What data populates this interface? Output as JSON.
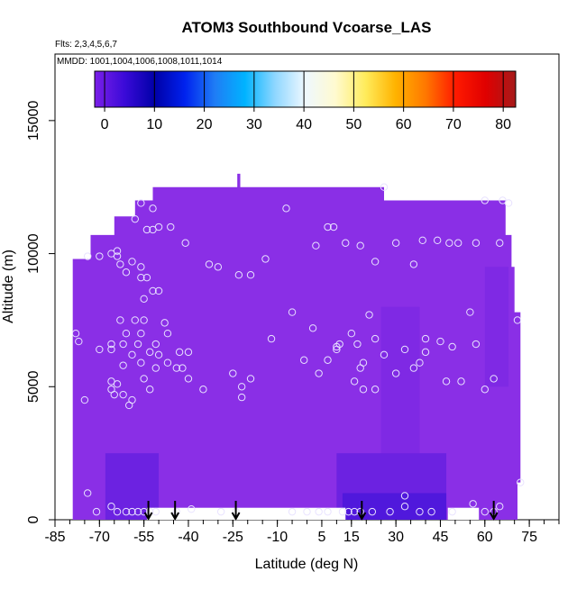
{
  "chart_data": {
    "type": "heatmap",
    "title": "ATOM3 Southbound Vcoarse_LAS",
    "info_line_1": "Flts: 2,3,4,5,6,7",
    "info_line_2": "MMDD: 1001,1004,1006,1008,1011,1014",
    "xlabel": "Latitude (deg N)",
    "ylabel": "Altitude (m)",
    "xlim": [
      -85,
      85
    ],
    "ylim": [
      0,
      17500
    ],
    "x_ticks": [
      -85,
      -70,
      -55,
      -40,
      -25,
      -10,
      5,
      15,
      30,
      45,
      60,
      75
    ],
    "y_ticks": [
      0,
      5000,
      10000,
      15000
    ],
    "colorbar": {
      "ticks": [
        0,
        10,
        20,
        30,
        40,
        50,
        60,
        70,
        80
      ],
      "range": [
        -2,
        82.5
      ],
      "colors": [
        "#7b1fe8",
        "#3a0ad8",
        "#0000a8",
        "#0022ee",
        "#1f7df5",
        "#00b3ff",
        "#8fd7ff",
        "#eef8ff",
        "#fffad0",
        "#ffec5c",
        "#ffb300",
        "#ff7800",
        "#ff1a00",
        "#e00000",
        "#a61a1a"
      ]
    },
    "colors": {
      "background": "#8a2fe6",
      "darker": "#6a1fe0",
      "darkest": "#3b10d8",
      "point_stroke": "#e8e2ff",
      "arrow": "#000000"
    },
    "coverage_outline": [
      [
        -79,
        0
      ],
      [
        -79,
        9800
      ],
      [
        -73,
        9800
      ],
      [
        -73,
        10700
      ],
      [
        -65,
        10700
      ],
      [
        -65,
        11400
      ],
      [
        -58,
        11400
      ],
      [
        -58,
        12000
      ],
      [
        -52,
        12000
      ],
      [
        -52,
        12500
      ],
      [
        -23.5,
        12500
      ],
      [
        -23.5,
        13000
      ],
      [
        -22.5,
        13000
      ],
      [
        -22.5,
        12500
      ],
      [
        26,
        12500
      ],
      [
        26,
        12000
      ],
      [
        67,
        12000
      ],
      [
        67,
        10700
      ],
      [
        69,
        10700
      ],
      [
        69,
        9500
      ],
      [
        70,
        9500
      ],
      [
        70,
        7800
      ],
      [
        72,
        7800
      ],
      [
        72,
        1400
      ],
      [
        71,
        1400
      ],
      [
        71,
        0
      ]
    ],
    "data_gaps": [
      {
        "x0": -54,
        "x1": 13,
        "y0": 0,
        "y1": 450
      },
      {
        "x0": 47.5,
        "x1": 58,
        "y0": 0,
        "y1": 450
      }
    ],
    "dark_regions": [
      {
        "x0": -68,
        "x1": -50,
        "y0": 0,
        "y1": 2500,
        "level": 1
      },
      {
        "x0": 10,
        "x1": 47,
        "y0": 0,
        "y1": 2500,
        "level": 1
      },
      {
        "x0": 12,
        "x1": 47,
        "y0": 0,
        "y1": 1000,
        "level": 2
      },
      {
        "x0": 25,
        "x1": 38,
        "y0": 2500,
        "y1": 8000,
        "level": 0
      },
      {
        "x0": 60,
        "x1": 68,
        "y0": 5000,
        "y1": 9500,
        "level": 0
      }
    ],
    "points": [
      [
        -74,
        9900
      ],
      [
        -78,
        7000
      ],
      [
        -77,
        6700
      ],
      [
        -75,
        4500
      ],
      [
        -70,
        9900
      ],
      [
        -66,
        10000
      ],
      [
        -64,
        10100
      ],
      [
        -64,
        9900
      ],
      [
        -63,
        9600
      ],
      [
        -61,
        9300
      ],
      [
        -59,
        9700
      ],
      [
        -56,
        9500
      ],
      [
        -56,
        9100
      ],
      [
        -54,
        9100
      ],
      [
        -58,
        11300
      ],
      [
        -54,
        10900
      ],
      [
        -52,
        10900
      ],
      [
        -50,
        11000
      ],
      [
        -46,
        11000
      ],
      [
        -56,
        11900
      ],
      [
        -52,
        11700
      ],
      [
        -41,
        10400
      ],
      [
        -33,
        9600
      ],
      [
        -30,
        9500
      ],
      [
        -23,
        9200
      ],
      [
        -19,
        9200
      ],
      [
        -14,
        9800
      ],
      [
        -7,
        11700
      ],
      [
        3,
        10300
      ],
      [
        7,
        11000
      ],
      [
        9,
        11000
      ],
      [
        13,
        10400
      ],
      [
        18,
        10300
      ],
      [
        26,
        12500
      ],
      [
        23,
        9700
      ],
      [
        30,
        10400
      ],
      [
        36,
        9600
      ],
      [
        39,
        10500
      ],
      [
        44,
        10500
      ],
      [
        51,
        10400
      ],
      [
        57,
        10400
      ],
      [
        65,
        10400
      ],
      [
        66,
        12000
      ],
      [
        68,
        11900
      ],
      [
        60,
        12000
      ],
      [
        48,
        10400
      ],
      [
        -63,
        7500
      ],
      [
        -58,
        7500
      ],
      [
        -55,
        7500
      ],
      [
        -61,
        7000
      ],
      [
        -56,
        7000
      ],
      [
        -48,
        7400
      ],
      [
        -55,
        8300
      ],
      [
        -52,
        8600
      ],
      [
        -50,
        8600
      ],
      [
        -66,
        6600
      ],
      [
        -62,
        6600
      ],
      [
        -57,
        6600
      ],
      [
        -51,
        6600
      ],
      [
        -47,
        7000
      ],
      [
        -53,
        6300
      ],
      [
        -50,
        6200
      ],
      [
        -47,
        5900
      ],
      [
        -59,
        6200
      ],
      [
        -56,
        5900
      ],
      [
        -51,
        5700
      ],
      [
        -44,
        5700
      ],
      [
        -42,
        5700
      ],
      [
        -40,
        5300
      ],
      [
        -62,
        5800
      ],
      [
        -66,
        6400
      ],
      [
        -70,
        6400
      ],
      [
        -66,
        5200
      ],
      [
        -64,
        5100
      ],
      [
        -66,
        4900
      ],
      [
        -65,
        4700
      ],
      [
        -62,
        4700
      ],
      [
        -59,
        4500
      ],
      [
        -60,
        4300
      ],
      [
        -55,
        5300
      ],
      [
        -53,
        4900
      ],
      [
        -43,
        6300
      ],
      [
        -40,
        6300
      ],
      [
        -35,
        4900
      ],
      [
        -25,
        5500
      ],
      [
        -22,
        4600
      ],
      [
        -22,
        5000
      ],
      [
        -19,
        5300
      ],
      [
        -12,
        6800
      ],
      [
        -5,
        7800
      ],
      [
        -1,
        6000
      ],
      [
        2,
        7200
      ],
      [
        4,
        5500
      ],
      [
        7,
        6000
      ],
      [
        10,
        6500
      ],
      [
        10,
        6400
      ],
      [
        11,
        6600
      ],
      [
        15,
        7000
      ],
      [
        17,
        6600
      ],
      [
        18,
        5700
      ],
      [
        19,
        5900
      ],
      [
        21,
        7700
      ],
      [
        16,
        5200
      ],
      [
        19,
        4900
      ],
      [
        23,
        6800
      ],
      [
        23,
        4900
      ],
      [
        26,
        6200
      ],
      [
        30,
        5500
      ],
      [
        33,
        6400
      ],
      [
        36,
        5700
      ],
      [
        38,
        5900
      ],
      [
        40,
        6300
      ],
      [
        40,
        6800
      ],
      [
        45,
        6700
      ],
      [
        47,
        5200
      ],
      [
        49,
        6500
      ],
      [
        52,
        5200
      ],
      [
        55,
        7800
      ],
      [
        57,
        6600
      ],
      [
        63,
        5300
      ],
      [
        60,
        4900
      ],
      [
        71,
        7500
      ],
      [
        72,
        1400
      ],
      [
        -74,
        1000
      ],
      [
        -71,
        300
      ],
      [
        -66,
        500
      ],
      [
        -64,
        300
      ],
      [
        -61,
        300
      ],
      [
        -59,
        300
      ],
      [
        -57,
        300
      ],
      [
        -55,
        300
      ],
      [
        -53,
        300
      ],
      [
        -51,
        300
      ],
      [
        -44,
        300
      ],
      [
        -39,
        400
      ],
      [
        -29,
        300
      ],
      [
        -24,
        300
      ],
      [
        -5,
        300
      ],
      [
        0,
        300
      ],
      [
        4,
        300
      ],
      [
        7,
        300
      ],
      [
        12,
        300
      ],
      [
        14,
        300
      ],
      [
        16,
        300
      ],
      [
        18,
        300
      ],
      [
        22,
        300
      ],
      [
        28,
        300
      ],
      [
        33,
        500
      ],
      [
        33,
        900
      ],
      [
        38,
        300
      ],
      [
        42,
        300
      ],
      [
        49,
        300
      ],
      [
        56,
        600
      ],
      [
        60,
        300
      ],
      [
        63,
        300
      ],
      [
        65,
        500
      ]
    ],
    "arrows_x": [
      -53.5,
      -44.5,
      -24,
      18.5,
      63
    ]
  }
}
